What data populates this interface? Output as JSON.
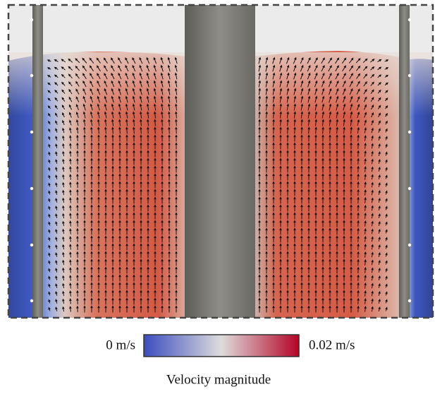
{
  "colorbar": {
    "min_label": "0 m/s",
    "max_label": "0.02 m/s",
    "title": "Velocity magnitude"
  }
}
